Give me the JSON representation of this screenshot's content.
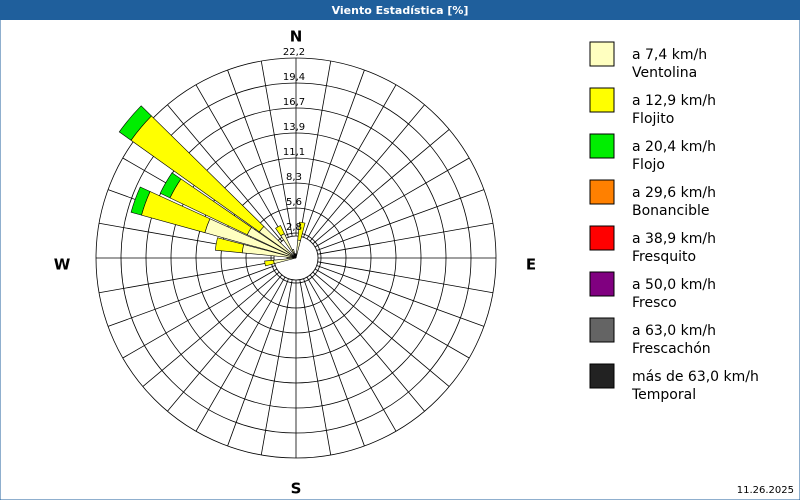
{
  "chart_data": {
    "type": "windrose",
    "title": "Viento Estadística [%]",
    "date": "11.26.2025",
    "direction_labels": [
      "N",
      "E",
      "S",
      "W"
    ],
    "x": [
      0,
      10,
      20,
      30,
      40,
      50,
      60,
      70,
      80,
      90,
      100,
      110,
      120,
      130,
      140,
      150,
      160,
      170,
      180,
      190,
      200,
      210,
      220,
      230,
      240,
      250,
      260,
      270,
      280,
      290,
      300,
      310,
      320,
      330,
      340,
      350
    ],
    "ylim": [
      0,
      22.2
    ],
    "yticks": [
      {
        "value": 2.775,
        "label": "2,8"
      },
      {
        "value": 5.55,
        "label": "5,6"
      },
      {
        "value": 8.325,
        "label": "8,3"
      },
      {
        "value": 11.1,
        "label": "11,1"
      },
      {
        "value": 13.875,
        "label": "13,9"
      },
      {
        "value": 16.65,
        "label": "16,7"
      },
      {
        "value": 19.425,
        "label": "19,4"
      },
      {
        "value": 22.2,
        "label": "22,2"
      }
    ],
    "series": [
      {
        "name": "a 7,4 km/h",
        "label": "Ventolina",
        "color": "#ffffc0",
        "values": [
          0,
          2,
          0,
          0,
          0,
          0,
          0,
          0,
          0,
          0,
          0,
          0,
          0,
          0,
          0,
          0,
          0,
          0,
          0,
          0,
          0,
          0,
          0,
          0,
          0,
          0,
          2.5,
          1,
          6,
          10.5,
          6,
          5,
          0,
          3,
          1,
          0.5
        ]
      },
      {
        "name": "a 12,9 km/h",
        "label": "Flojito",
        "color": "#ffff00",
        "values": [
          0,
          2,
          0,
          0,
          0,
          0,
          0,
          0,
          0,
          0,
          0,
          0,
          0,
          0,
          0,
          0,
          0,
          0,
          0,
          0,
          0,
          0,
          0,
          0,
          0,
          0,
          1,
          0,
          3,
          7.3,
          9.5,
          17.5,
          0,
          1,
          0,
          0
        ]
      },
      {
        "name": "a 20,4 km/h",
        "label": "Flojo",
        "color": "#00ee00",
        "values": [
          0,
          0,
          0,
          0,
          0,
          0,
          0,
          0,
          0,
          0,
          0,
          0,
          0,
          0,
          0,
          0,
          0,
          0,
          0,
          0,
          0,
          0,
          0,
          0,
          0,
          0,
          0,
          0,
          0,
          1.2,
          1.2,
          1.6,
          0,
          0,
          0,
          0
        ]
      },
      {
        "name": "a 29,6 km/h",
        "label": "Bonancible",
        "color": "#ff8000",
        "values": [
          0,
          0,
          0,
          0,
          0,
          0,
          0,
          0,
          0,
          0,
          0,
          0,
          0,
          0,
          0,
          0,
          0,
          0,
          0,
          0,
          0,
          0,
          0,
          0,
          0,
          0,
          0,
          0,
          0,
          0,
          0,
          0,
          0,
          0,
          0,
          0
        ]
      },
      {
        "name": "a 38,9 km/h",
        "label": "Fresquito",
        "color": "#ff0000",
        "values": [
          0,
          0,
          0,
          0,
          0,
          0,
          0,
          0,
          0,
          0,
          0,
          0,
          0,
          0,
          0,
          0,
          0,
          0,
          0,
          0,
          0,
          0,
          0,
          0,
          0,
          0,
          0,
          0,
          0,
          0,
          0,
          0,
          0,
          0,
          0,
          0
        ]
      },
      {
        "name": "a 50,0 km/h",
        "label": "Fresco",
        "color": "#800080",
        "values": [
          0,
          0,
          0,
          0,
          0,
          0,
          0,
          0,
          0,
          0,
          0,
          0,
          0,
          0,
          0,
          0,
          0,
          0,
          0,
          0,
          0,
          0,
          0,
          0,
          0,
          0,
          0,
          0,
          0,
          0,
          0,
          0,
          0,
          0,
          0,
          0
        ]
      },
      {
        "name": "a 63,0 km/h",
        "label": "Frescachón",
        "color": "#646464",
        "values": [
          0,
          0,
          0,
          0,
          0,
          0,
          0,
          0,
          0,
          0,
          0,
          0,
          0,
          0,
          0,
          0,
          0,
          0,
          0,
          0,
          0,
          0,
          0,
          0,
          0,
          0,
          0,
          0,
          0,
          0,
          0,
          0,
          0,
          0,
          0,
          0
        ]
      },
      {
        "name": "más de 63,0 km/h",
        "label": "Temporal",
        "color": "#222222",
        "values": [
          0,
          0,
          0,
          0,
          0,
          0,
          0,
          0,
          0,
          0,
          0,
          0,
          0,
          0,
          0,
          0,
          0,
          0,
          0,
          0,
          0,
          0,
          0,
          0,
          0,
          0,
          0,
          0,
          0,
          0,
          0,
          0,
          0,
          0,
          0,
          0
        ]
      }
    ]
  }
}
